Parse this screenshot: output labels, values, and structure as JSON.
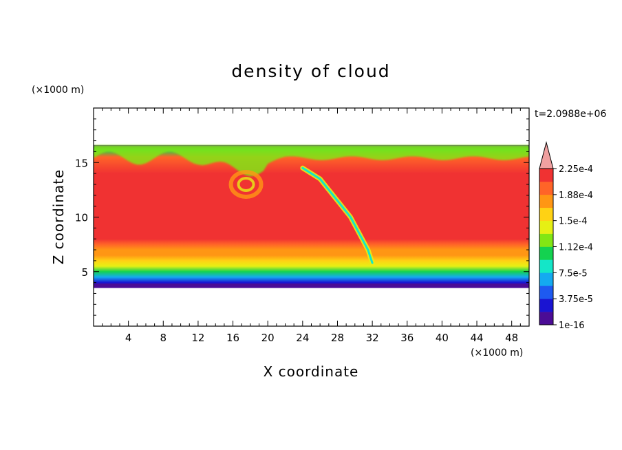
{
  "chart_data": {
    "type": "heatmap",
    "title": "density of cloud",
    "xlabel": "X coordinate",
    "ylabel": "Z coordinate",
    "x_unit": "(×1000 m)",
    "y_unit": "(×1000 m)",
    "time_label": "t=2.0988e+06",
    "xlim": [
      0,
      50
    ],
    "ylim": [
      0,
      20
    ],
    "x_ticks": [
      4,
      8,
      12,
      16,
      20,
      24,
      28,
      32,
      36,
      40,
      44,
      48
    ],
    "x_tick_labels": [
      "4",
      "8",
      "12",
      "16",
      "20",
      "24",
      "28",
      "32",
      "36",
      "40",
      "44",
      "48"
    ],
    "y_ticks": [
      5,
      10,
      15
    ],
    "y_tick_labels": [
      "5",
      "10",
      "15"
    ],
    "colorbar": {
      "levels": [
        "1e-16",
        "3.75e-5",
        "7.5e-5",
        "1.12e-4",
        "1.5e-4",
        "1.88e-4",
        "2.25e-4"
      ],
      "colors": [
        "#4b0c96",
        "#1a14d2",
        "#1e5af0",
        "#14aaf0",
        "#14e6c8",
        "#14d250",
        "#82e614",
        "#e6f014",
        "#ffd214",
        "#ff9614",
        "#ff6428",
        "#f03232"
      ],
      "overflow_color": "#f0a0a0"
    },
    "cloud_field": {
      "base_z": 3.5,
      "top_z": 16.6,
      "core_value": 0.00024,
      "vertical_profile_z": [
        3.5,
        4.0,
        4.5,
        5.0,
        5.5,
        6.0,
        6.5,
        7.0,
        7.5,
        8.0,
        9.0,
        10.0,
        12.0,
        14.0,
        15.5,
        16.2,
        16.6
      ],
      "vertical_profile_value": [
        1e-16,
        3.75e-05,
        7.5e-05,
        0.000112,
        0.00015,
        0.00017,
        0.000188,
        0.000205,
        0.00022,
        0.00023,
        0.00024,
        0.000245,
        0.000245,
        0.00024,
        0.00022,
        0.00012,
        1e-16
      ],
      "vortex_center": [
        17.5,
        13.0
      ],
      "plume_path_x": [
        24,
        26,
        28,
        29.5,
        30.5,
        31.5,
        32
      ],
      "plume_path_z": [
        14.5,
        13.5,
        11.5,
        10.0,
        8.5,
        7.0,
        5.8
      ]
    }
  }
}
